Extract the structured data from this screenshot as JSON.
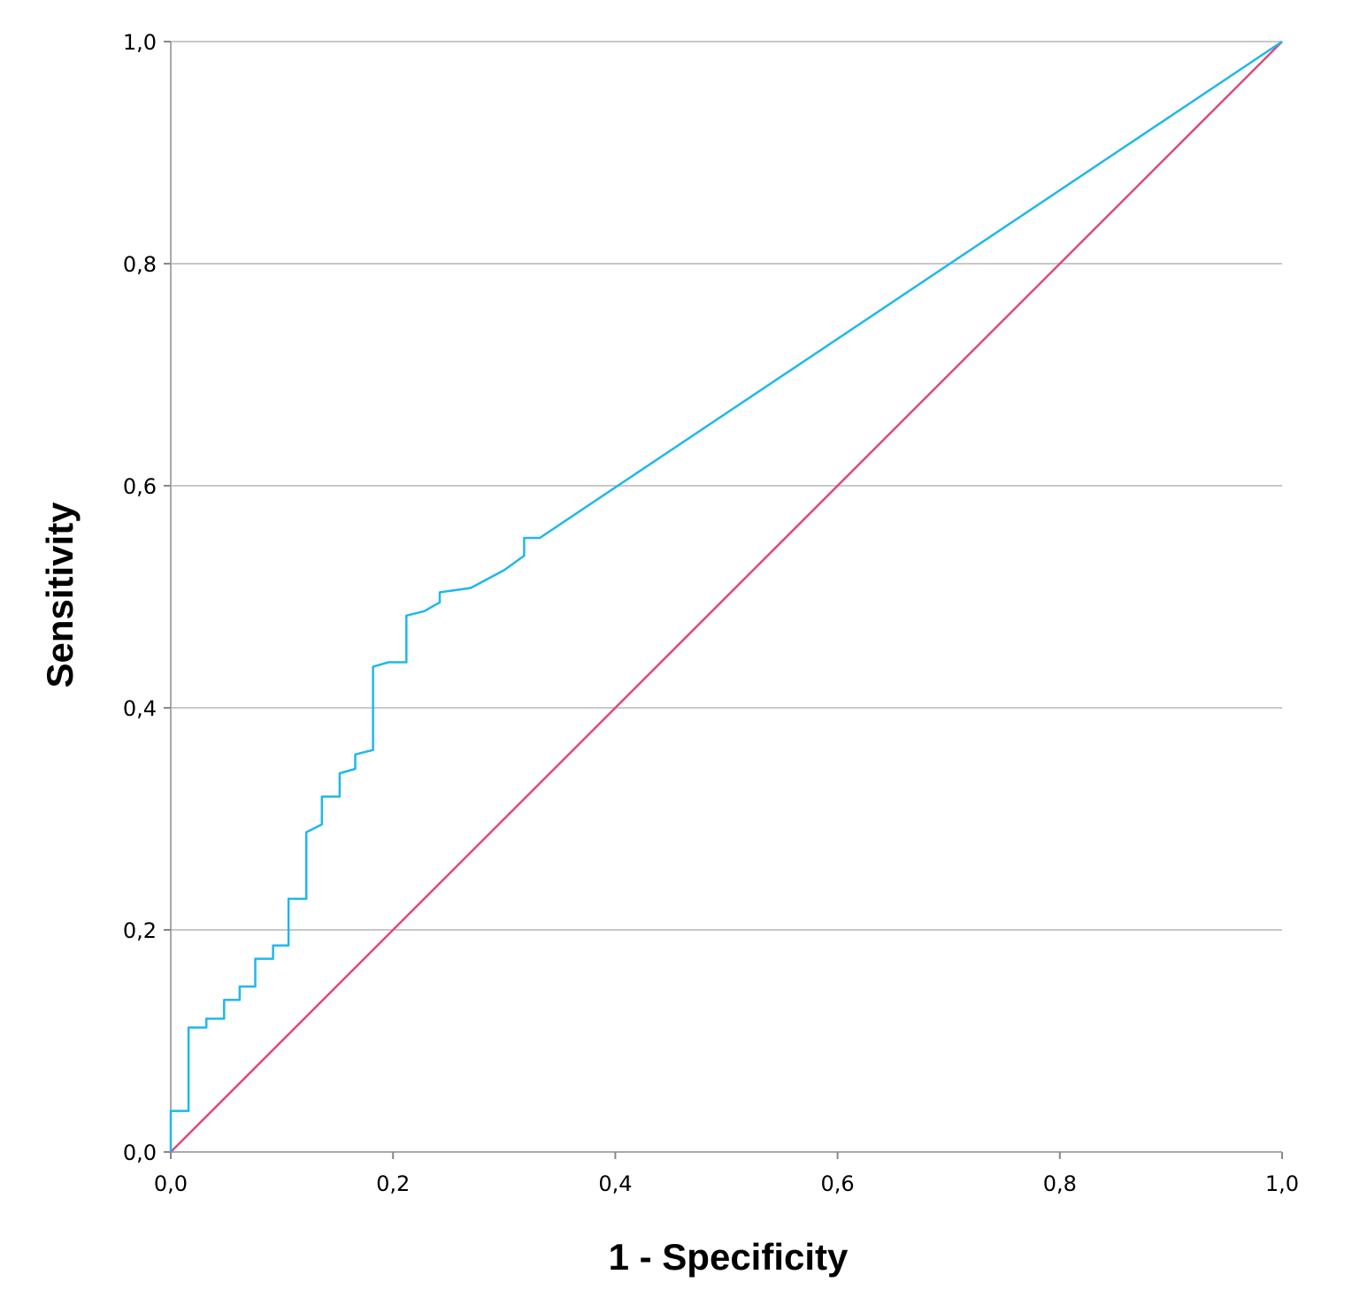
{
  "chart_data": {
    "type": "line",
    "title": "",
    "xlabel": "1 - Specificity",
    "ylabel": "Sensitivity",
    "xlim": [
      0,
      1
    ],
    "ylim": [
      0,
      1
    ],
    "x_ticks": [
      0,
      0.2,
      0.4,
      0.6,
      0.8,
      1.0
    ],
    "y_ticks": [
      0,
      0.2,
      0.4,
      0.6,
      0.8,
      1.0
    ],
    "x_tick_labels": [
      "0,0",
      "0,2",
      "0,4",
      "0,6",
      "0,8",
      "1,0"
    ],
    "y_tick_labels": [
      "0,0",
      "0,2",
      "0,4",
      "0,6",
      "0,8",
      "1,0"
    ],
    "grid": "horizontal",
    "legend": "none",
    "series": [
      {
        "color": "#1fb7ee",
        "points": [
          [
            0.0,
            0.0
          ],
          [
            0.0,
            0.037
          ],
          [
            0.016,
            0.037
          ],
          [
            0.016,
            0.112
          ],
          [
            0.032,
            0.112
          ],
          [
            0.032,
            0.12
          ],
          [
            0.048,
            0.12
          ],
          [
            0.048,
            0.137
          ],
          [
            0.062,
            0.137
          ],
          [
            0.062,
            0.149
          ],
          [
            0.076,
            0.149
          ],
          [
            0.076,
            0.174
          ],
          [
            0.092,
            0.174
          ],
          [
            0.092,
            0.186
          ],
          [
            0.106,
            0.186
          ],
          [
            0.106,
            0.228
          ],
          [
            0.122,
            0.228
          ],
          [
            0.122,
            0.288
          ],
          [
            0.136,
            0.295
          ],
          [
            0.136,
            0.32
          ],
          [
            0.152,
            0.32
          ],
          [
            0.152,
            0.341
          ],
          [
            0.166,
            0.345
          ],
          [
            0.166,
            0.358
          ],
          [
            0.182,
            0.362
          ],
          [
            0.182,
            0.437
          ],
          [
            0.196,
            0.441
          ],
          [
            0.212,
            0.441
          ],
          [
            0.212,
            0.483
          ],
          [
            0.228,
            0.487
          ],
          [
            0.242,
            0.495
          ],
          [
            0.242,
            0.504
          ],
          [
            0.27,
            0.508
          ],
          [
            0.3,
            0.524
          ],
          [
            0.318,
            0.537
          ],
          [
            0.318,
            0.553
          ],
          [
            0.332,
            0.553
          ],
          [
            1.0,
            1.0
          ]
        ]
      },
      {
        "color": "#e0487a",
        "points": [
          [
            0,
            0
          ],
          [
            1,
            1
          ]
        ]
      }
    ]
  }
}
